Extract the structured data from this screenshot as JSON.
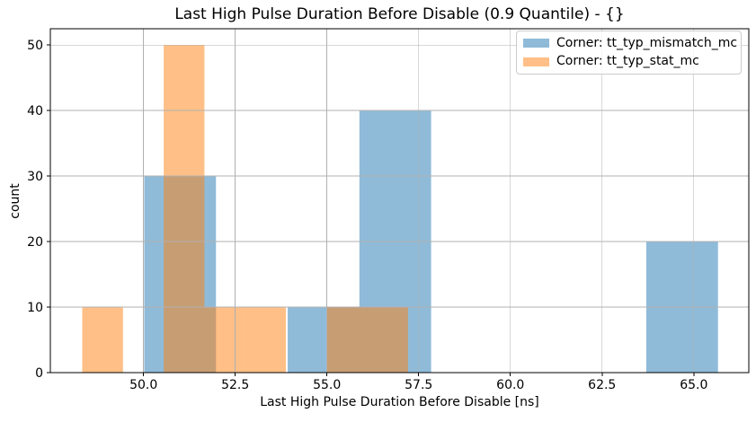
{
  "chart_data": {
    "type": "bar",
    "variant": "overlapping_histogram",
    "title": "Last High Pulse Duration Before Disable (0.9 Quantile) - {}",
    "xlabel": "Last High Pulse Duration Before Disable [ns]",
    "ylabel": "count",
    "xlim": [
      47.46,
      66.5
    ],
    "ylim": [
      0,
      52.5
    ],
    "xticks": {
      "values": [
        50.0,
        52.5,
        55.0,
        57.5,
        60.0,
        62.5,
        65.0
      ],
      "labels": [
        "50.0",
        "52.5",
        "55.0",
        "57.5",
        "60.0",
        "62.5",
        "65.0"
      ]
    },
    "yticks": {
      "values": [
        0,
        10,
        20,
        30,
        40,
        50
      ],
      "labels": [
        "0",
        "10",
        "20",
        "30",
        "40",
        "50"
      ]
    },
    "grid": true,
    "grid_color": "#b0b0b0",
    "legend_position": "upper right",
    "series": [
      {
        "name": "Corner: tt_typ_mismatch_mc",
        "color": "#1f77b4",
        "alpha": 0.5,
        "bins": {
          "start": 50.02,
          "width": 1.955,
          "counts": [
            30,
            0,
            10,
            40,
            0,
            0,
            0,
            20
          ]
        }
      },
      {
        "name": "Corner: tt_typ_stat_mc",
        "color": "#ff7f0e",
        "alpha": 0.5,
        "bins": {
          "start": 48.33,
          "width": 1.11,
          "counts": [
            10,
            0,
            50,
            10,
            10,
            0,
            10,
            10
          ]
        }
      }
    ]
  }
}
